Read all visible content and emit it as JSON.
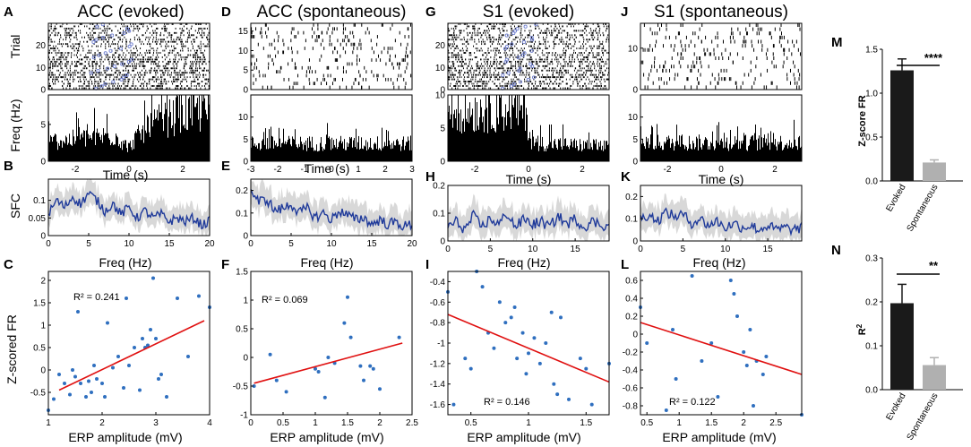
{
  "colors": {
    "spike": "#000000",
    "stim_marker": "#6f7fd0",
    "sfc_line": "#1f3a9a",
    "sfc_band": "#d8d8d8",
    "scatter_point": "#2f6fbf",
    "fit_line": "#e01010",
    "bar_evoked": "#1a1a1a",
    "bar_spontaneous": "#b0b0b0"
  },
  "labels": {
    "trial": "Trial",
    "freq_hz_rot": "Freq (Hz)",
    "sfc": "SFC",
    "zscored_fr": "Z-scored FR",
    "time_s": "Time (s)",
    "freq_hz": "Freq (Hz)",
    "erp": "ERP amplitude (mV)",
    "zscore_fr_bar": "Z-score FR",
    "r2_bar": "R",
    "sq": "2"
  },
  "columns": [
    {
      "letters": [
        "A",
        "B",
        "C"
      ],
      "title": "ACC (evoked)",
      "r2": "R² = 0.241"
    },
    {
      "letters": [
        "D",
        "E",
        "F"
      ],
      "title": "ACC (spontaneous)",
      "r2": "R² = 0.069"
    },
    {
      "letters": [
        "G",
        "H",
        "I"
      ],
      "title": "S1 (evoked)",
      "r2": "R² = 0.146"
    },
    {
      "letters": [
        "J",
        "K",
        "L"
      ],
      "title": "S1 (spontaneous)",
      "r2": "R² = 0.122"
    }
  ],
  "bar_panels": [
    {
      "letter": "M",
      "significance": "****"
    },
    {
      "letter": "N",
      "significance": "**"
    }
  ],
  "chart_data": [
    {
      "id": "A-raster",
      "type": "scatter",
      "panel": "A",
      "title": "ACC (evoked)",
      "ylabel": "Trial",
      "xlim": [
        -3,
        3
      ],
      "ylim": [
        0,
        30
      ],
      "yticks": [
        0,
        10,
        20
      ],
      "trials": 30,
      "spike_rate": "high",
      "evoked": true,
      "stim_markers_x": [
        -1.3,
        -1.1,
        -0.9,
        -0.6,
        -0.3,
        -0.1,
        0.0
      ]
    },
    {
      "id": "A-psth",
      "type": "bar",
      "panel": "A",
      "xlabel": "Time (s)",
      "ylabel": "Freq (Hz)",
      "xlim": [
        -3,
        3
      ],
      "ylim": [
        0,
        9
      ],
      "yticks": [
        0,
        5
      ],
      "xticks": [
        -2,
        0,
        2
      ],
      "profile": {
        "x": [
          -3,
          -1.5,
          -0.5,
          0,
          0.2,
          1,
          2,
          3
        ],
        "y": [
          2.6,
          3.2,
          3.5,
          1.8,
          3.0,
          5.2,
          6.5,
          6.8
        ]
      }
    },
    {
      "id": "B-sfc",
      "type": "line",
      "panel": "B",
      "xlabel": "Freq (Hz)",
      "ylabel": "SFC",
      "xlim": [
        0,
        20
      ],
      "ylim": [
        0,
        0.16
      ],
      "xticks": [
        0,
        5,
        10,
        15,
        20
      ],
      "yticks": [
        0,
        0.05,
        0.1
      ],
      "series": [
        {
          "name": "mean SFC",
          "x": [
            0,
            1,
            2,
            3,
            4,
            5,
            6,
            7,
            8,
            9,
            10,
            11,
            12,
            13,
            14,
            15,
            16,
            17,
            18,
            19,
            20
          ],
          "y": [
            0.06,
            0.1,
            0.08,
            0.11,
            0.09,
            0.12,
            0.1,
            0.07,
            0.09,
            0.06,
            0.08,
            0.05,
            0.07,
            0.05,
            0.06,
            0.04,
            0.05,
            0.04,
            0.05,
            0.03,
            0.04
          ]
        }
      ],
      "band": 0.035
    },
    {
      "id": "C-scatter",
      "type": "scatter",
      "panel": "C",
      "xlabel": "ERP amplitude (mV)",
      "ylabel": "Z-scored FR",
      "xlim": [
        1,
        4
      ],
      "ylim": [
        -1,
        2.2
      ],
      "xticks": [
        1,
        2,
        3,
        4
      ],
      "yticks": [
        -0.5,
        0,
        0.5,
        1,
        1.5,
        2
      ],
      "annotation": "R² = 0.241",
      "fit": {
        "x": [
          1.2,
          3.9
        ],
        "y": [
          -0.45,
          1.1
        ]
      },
      "points": [
        [
          1.0,
          -0.9
        ],
        [
          1.1,
          -0.65
        ],
        [
          1.2,
          -0.1
        ],
        [
          1.3,
          -0.3
        ],
        [
          1.4,
          -0.55
        ],
        [
          1.45,
          0.0
        ],
        [
          1.5,
          -0.15
        ],
        [
          1.55,
          1.3
        ],
        [
          1.6,
          -0.3
        ],
        [
          1.7,
          -0.6
        ],
        [
          1.75,
          -0.25
        ],
        [
          1.8,
          -0.5
        ],
        [
          1.85,
          0.1
        ],
        [
          1.9,
          -0.2
        ],
        [
          2.0,
          -0.3
        ],
        [
          2.05,
          -0.6
        ],
        [
          2.1,
          1.05
        ],
        [
          2.2,
          0.05
        ],
        [
          2.3,
          0.3
        ],
        [
          2.4,
          -0.4
        ],
        [
          2.45,
          1.6
        ],
        [
          2.5,
          0.1
        ],
        [
          2.6,
          0.5
        ],
        [
          2.7,
          -0.45
        ],
        [
          2.75,
          0.7
        ],
        [
          2.8,
          0.5
        ],
        [
          2.85,
          0.55
        ],
        [
          2.9,
          0.9
        ],
        [
          2.95,
          2.05
        ],
        [
          3.0,
          0.7
        ],
        [
          3.05,
          -0.2
        ],
        [
          3.1,
          -0.1
        ],
        [
          3.2,
          -0.6
        ],
        [
          3.4,
          1.6
        ],
        [
          3.6,
          0.3
        ],
        [
          3.8,
          1.65
        ],
        [
          4.0,
          1.4
        ]
      ]
    },
    {
      "id": "D-raster",
      "type": "scatter",
      "panel": "D",
      "title": "ACC (spontaneous)",
      "xlim": [
        -3,
        3
      ],
      "ylim": [
        0,
        17
      ],
      "yticks": [
        0,
        5,
        10,
        15
      ],
      "trials": 17,
      "spike_rate": "sparse",
      "evoked": false
    },
    {
      "id": "D-psth",
      "type": "bar",
      "panel": "D",
      "xlabel": "Time (s)",
      "xlim": [
        -3,
        3
      ],
      "ylim": [
        0,
        15
      ],
      "yticks": [
        0,
        5,
        10
      ],
      "xticks": [
        -3,
        -2,
        -1,
        0,
        1,
        2,
        3
      ],
      "profile": {
        "x": [
          -3,
          3
        ],
        "y": [
          4.0,
          4.0
        ]
      }
    },
    {
      "id": "E-sfc",
      "type": "line",
      "panel": "E",
      "xlabel": "Freq (Hz)",
      "xlim": [
        0,
        20
      ],
      "ylim": [
        0,
        0.25
      ],
      "xticks": [
        0,
        5,
        10,
        15,
        20
      ],
      "yticks": [
        0,
        0.1,
        0.2
      ],
      "series": [
        {
          "name": "mean SFC",
          "x": [
            0,
            1,
            2,
            3,
            4,
            5,
            6,
            7,
            8,
            9,
            10,
            11,
            12,
            13,
            14,
            15,
            16,
            17,
            18,
            19,
            20
          ],
          "y": [
            0.2,
            0.15,
            0.16,
            0.11,
            0.12,
            0.14,
            0.1,
            0.12,
            0.08,
            0.1,
            0.07,
            0.11,
            0.09,
            0.07,
            0.08,
            0.05,
            0.07,
            0.05,
            0.06,
            0.04,
            0.05
          ]
        }
      ],
      "band": 0.06
    },
    {
      "id": "F-scatter",
      "type": "scatter",
      "panel": "F",
      "xlabel": "ERP amplitude (mV)",
      "xlim": [
        0,
        2.5
      ],
      "ylim": [
        -1,
        1.5
      ],
      "xticks": [
        0,
        0.5,
        1,
        1.5,
        2,
        2.5
      ],
      "yticks": [
        -1,
        -0.5,
        0,
        0.5,
        1,
        1.5
      ],
      "annotation": "R² = 0.069",
      "fit": {
        "x": [
          0.05,
          2.35
        ],
        "y": [
          -0.45,
          0.25
        ]
      },
      "points": [
        [
          0.05,
          -0.5
        ],
        [
          0.3,
          0.05
        ],
        [
          0.4,
          -0.4
        ],
        [
          0.55,
          -0.6
        ],
        [
          1.0,
          -0.2
        ],
        [
          1.05,
          -0.25
        ],
        [
          1.15,
          -0.7
        ],
        [
          1.2,
          0.0
        ],
        [
          1.3,
          -0.1
        ],
        [
          1.45,
          0.6
        ],
        [
          1.5,
          1.05
        ],
        [
          1.55,
          0.35
        ],
        [
          1.7,
          -0.15
        ],
        [
          1.75,
          -0.4
        ],
        [
          1.85,
          -0.15
        ],
        [
          1.9,
          -0.2
        ],
        [
          2.0,
          -0.55
        ],
        [
          2.3,
          0.35
        ]
      ]
    },
    {
      "id": "G-raster",
      "type": "scatter",
      "panel": "G",
      "title": "S1 (evoked)",
      "xlim": [
        -3,
        3
      ],
      "ylim": [
        0,
        30
      ],
      "yticks": [
        0,
        10,
        20
      ],
      "trials": 30,
      "spike_rate": "high",
      "evoked": true,
      "stim_markers_x": [
        -0.9,
        -0.7,
        -0.5,
        -0.3,
        0.0,
        0.2
      ]
    },
    {
      "id": "G-psth",
      "type": "bar",
      "panel": "G",
      "xlabel": "Time (s)",
      "xlim": [
        -3,
        3
      ],
      "ylim": [
        0,
        10
      ],
      "yticks": [
        0,
        5,
        10
      ],
      "xticks": [
        -2,
        0,
        2
      ],
      "profile": {
        "x": [
          -3,
          -0.1,
          0.1,
          3
        ],
        "y": [
          7.5,
          7.8,
          2.8,
          2.2
        ]
      }
    },
    {
      "id": "H-sfc",
      "type": "line",
      "panel": "H",
      "xlabel": "Freq (Hz)",
      "xlim": [
        0,
        19
      ],
      "ylim": [
        0,
        0.2
      ],
      "xticks": [
        0,
        5,
        10,
        15
      ],
      "yticks": [
        0,
        0.1,
        0.2
      ],
      "series": [
        {
          "name": "mean SFC",
          "x": [
            0,
            1,
            2,
            3,
            4,
            5,
            6,
            7,
            8,
            9,
            10,
            11,
            12,
            13,
            14,
            15,
            16,
            17,
            18,
            19
          ],
          "y": [
            0.05,
            0.07,
            0.04,
            0.09,
            0.05,
            0.08,
            0.06,
            0.1,
            0.05,
            0.08,
            0.06,
            0.07,
            0.05,
            0.09,
            0.06,
            0.08,
            0.05,
            0.07,
            0.06,
            0.05
          ]
        }
      ],
      "band": 0.05
    },
    {
      "id": "I-scatter",
      "type": "scatter",
      "panel": "I",
      "xlabel": "ERP amplitude (mV)",
      "xlim": [
        0.3,
        1.7
      ],
      "ylim": [
        -1.7,
        -0.3
      ],
      "xticks": [
        0.5,
        1,
        1.5
      ],
      "yticks": [
        -1.6,
        -1.4,
        -1.2,
        -1,
        -0.8,
        -0.6,
        -0.4
      ],
      "annotation": "R² = 0.146",
      "fit": {
        "x": [
          0.3,
          1.7
        ],
        "y": [
          -0.72,
          -1.38
        ]
      },
      "points": [
        [
          0.3,
          -0.5
        ],
        [
          0.35,
          -1.6
        ],
        [
          0.45,
          -1.15
        ],
        [
          0.5,
          -1.25
        ],
        [
          0.55,
          -0.3
        ],
        [
          0.6,
          -0.45
        ],
        [
          0.65,
          -0.9
        ],
        [
          0.7,
          -1.05
        ],
        [
          0.75,
          -0.6
        ],
        [
          0.8,
          -0.8
        ],
        [
          0.85,
          -0.75
        ],
        [
          0.88,
          -0.65
        ],
        [
          0.9,
          -1.15
        ],
        [
          0.95,
          -0.9
        ],
        [
          0.98,
          -1.3
        ],
        [
          1.0,
          -1.1
        ],
        [
          1.05,
          -0.95
        ],
        [
          1.1,
          -1.2
        ],
        [
          1.15,
          -1.0
        ],
        [
          1.2,
          -0.7
        ],
        [
          1.22,
          -1.4
        ],
        [
          1.25,
          -1.5
        ],
        [
          1.28,
          -0.75
        ],
        [
          1.35,
          -1.55
        ],
        [
          1.45,
          -1.15
        ],
        [
          1.5,
          -1.25
        ],
        [
          1.55,
          -1.6
        ],
        [
          1.7,
          -1.2
        ]
      ]
    },
    {
      "id": "J-raster",
      "type": "scatter",
      "panel": "J",
      "title": "S1 (spontaneous)",
      "xlim": [
        -3,
        3
      ],
      "ylim": [
        0,
        16
      ],
      "yticks": [
        0,
        10
      ],
      "trials": 16,
      "spike_rate": "sparse",
      "evoked": false
    },
    {
      "id": "J-psth",
      "type": "bar",
      "panel": "J",
      "xlabel": "Time (s)",
      "xlim": [
        -3,
        3
      ],
      "ylim": [
        0,
        15
      ],
      "yticks": [
        0,
        5,
        10
      ],
      "xticks": [
        -2,
        0,
        2
      ],
      "profile": {
        "x": [
          -3,
          3
        ],
        "y": [
          4.2,
          4.2
        ]
      }
    },
    {
      "id": "K-sfc",
      "type": "line",
      "panel": "K",
      "xlabel": "Freq (Hz)",
      "xlim": [
        0,
        19
      ],
      "ylim": [
        0,
        0.25
      ],
      "xticks": [
        0,
        5,
        10,
        15
      ],
      "yticks": [
        0,
        0.1,
        0.2
      ],
      "series": [
        {
          "name": "mean SFC",
          "x": [
            0,
            1,
            2,
            3,
            4,
            5,
            6,
            7,
            8,
            9,
            10,
            11,
            12,
            13,
            14,
            15,
            16,
            17,
            18,
            19
          ],
          "y": [
            0.1,
            0.12,
            0.09,
            0.13,
            0.11,
            0.12,
            0.08,
            0.1,
            0.07,
            0.09,
            0.06,
            0.08,
            0.06,
            0.07,
            0.05,
            0.07,
            0.05,
            0.06,
            0.05,
            0.06
          ]
        }
      ],
      "band": 0.06
    },
    {
      "id": "L-scatter",
      "type": "scatter",
      "panel": "L",
      "xlabel": "ERP amplitude (mV)",
      "xlim": [
        0.4,
        2.9
      ],
      "ylim": [
        -0.9,
        0.7
      ],
      "xticks": [
        0.5,
        1,
        1.5,
        2,
        2.5
      ],
      "yticks": [
        -0.8,
        -0.6,
        -0.4,
        -0.2,
        0,
        0.2,
        0.4,
        0.6
      ],
      "annotation": "R² = 0.122",
      "fit": {
        "x": [
          0.4,
          2.9
        ],
        "y": [
          0.13,
          -0.45
        ]
      },
      "points": [
        [
          0.4,
          0.3
        ],
        [
          0.5,
          -0.1
        ],
        [
          0.8,
          -0.85
        ],
        [
          0.9,
          0.05
        ],
        [
          0.95,
          -0.5
        ],
        [
          1.2,
          0.65
        ],
        [
          1.35,
          -0.3
        ],
        [
          1.5,
          -0.1
        ],
        [
          1.6,
          -0.7
        ],
        [
          1.8,
          0.6
        ],
        [
          1.85,
          0.45
        ],
        [
          1.9,
          0.2
        ],
        [
          2.0,
          -0.2
        ],
        [
          2.05,
          -0.35
        ],
        [
          2.1,
          0.05
        ],
        [
          2.15,
          -0.8
        ],
        [
          2.2,
          -0.3
        ],
        [
          2.3,
          -0.45
        ],
        [
          2.35,
          -0.25
        ],
        [
          2.9,
          -0.9
        ]
      ]
    },
    {
      "id": "M-bar",
      "type": "bar",
      "panel": "M",
      "ylabel": "Z-score FR",
      "categories": [
        "Evoked",
        "Spontaneous"
      ],
      "values": [
        1.26,
        0.21
      ],
      "errors": [
        0.13,
        0.03
      ],
      "ylim": [
        0,
        1.5
      ],
      "yticks": [
        0,
        0.5,
        1,
        1.5
      ],
      "significance": "****"
    },
    {
      "id": "N-bar",
      "type": "bar",
      "panel": "N",
      "ylabel": "R²",
      "categories": [
        "Evoked",
        "Spontaneous"
      ],
      "values": [
        0.197,
        0.056
      ],
      "errors": [
        0.043,
        0.017
      ],
      "ylim": [
        0,
        0.3
      ],
      "yticks": [
        0,
        0.1,
        0.2,
        0.3
      ],
      "significance": "**"
    }
  ]
}
